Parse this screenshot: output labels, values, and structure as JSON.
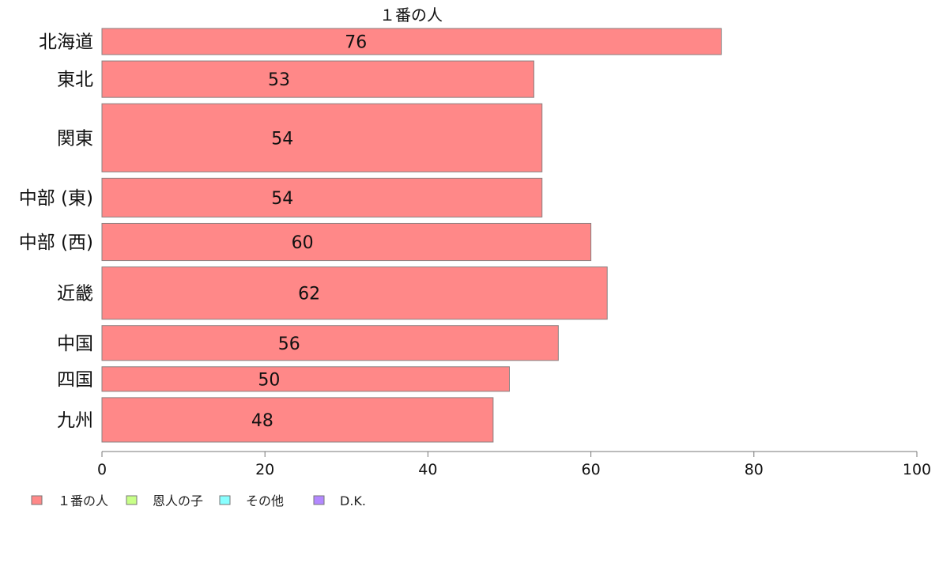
{
  "chart_data": {
    "type": "bar",
    "orientation": "horizontal",
    "title": "１番の人",
    "categories": [
      "北海道",
      "東北",
      "関東",
      "中部 (東)",
      "中部 (西)",
      "近畿",
      "中国",
      "四国",
      "九州"
    ],
    "series": [
      {
        "name": "１番の人",
        "color": "#ff8888",
        "values": [
          76,
          53,
          54,
          54,
          60,
          62,
          56,
          50,
          48
        ],
        "data_labels": [
          "76",
          "53",
          "54",
          "54",
          "60",
          "62",
          "56",
          "50",
          "48"
        ]
      }
    ],
    "bar_widths_relative": [
      33,
      46,
      86,
      49,
      47,
      66,
      44,
      31,
      56
    ],
    "xlim": [
      0,
      100
    ],
    "x_ticks": [
      0,
      20,
      40,
      60,
      80,
      100
    ],
    "xlabel": "",
    "ylabel": "",
    "grid": false,
    "legend": {
      "placement": "bottom-left",
      "entries": [
        {
          "label": "１番の人",
          "color": "#ff8888"
        },
        {
          "label": "恩人の子",
          "color": "#c8ff88"
        },
        {
          "label": "その他",
          "color": "#88ffff"
        },
        {
          "label": "D.K.",
          "color": "#b388ff"
        }
      ]
    }
  }
}
